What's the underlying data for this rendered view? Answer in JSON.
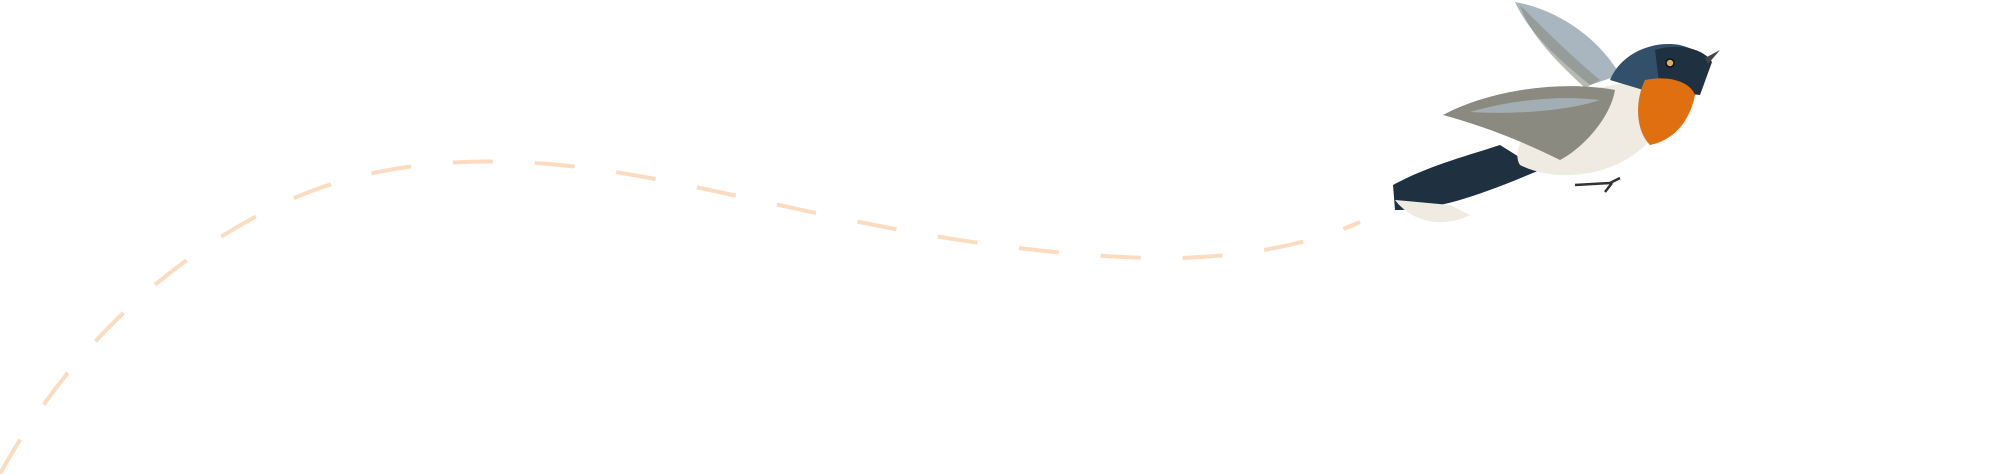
{
  "illustration": {
    "subject": "bird-in-flight",
    "colors": {
      "path_dash": "#fcdcc0",
      "bird_back": "#1f3040",
      "bird_head": "#33506b",
      "bird_throat": "#e0700f",
      "bird_belly": "#efebe2",
      "bird_wing": "#8a8a80",
      "bird_wing_light": "#a9b6c0"
    }
  }
}
